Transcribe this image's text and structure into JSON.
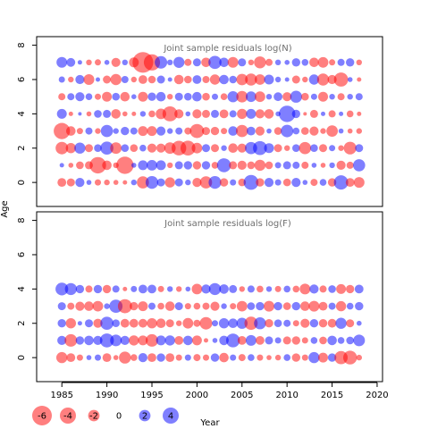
{
  "chart_data": {
    "type": "scatter",
    "ylabel": "Age",
    "xlabel": "Year",
    "xticks": [
      1985,
      1990,
      1995,
      2000,
      2005,
      2010,
      2015,
      2020
    ],
    "xlim": [
      1982.2,
      2020.6
    ],
    "colors": {
      "positive": "#0000ff",
      "negative": "#ff0000"
    },
    "panels": [
      {
        "title": "Joint sample residuals log(N)",
        "ylim": [
          -1.4,
          8.5
        ],
        "yticks": [
          0,
          2,
          4,
          6,
          8
        ],
        "years": [
          1985,
          1986,
          1987,
          1988,
          1989,
          1990,
          1991,
          1992,
          1993,
          1994,
          1995,
          1996,
          1997,
          1998,
          1999,
          2000,
          2001,
          2002,
          2003,
          2004,
          2005,
          2006,
          2007,
          2008,
          2009,
          2010,
          2011,
          2012,
          2013,
          2014,
          2015,
          2016,
          2017,
          2018
        ],
        "ages": [
          0,
          1,
          2,
          3,
          4,
          5,
          6,
          7
        ],
        "residuals": [
          [
            -1.2,
            0.3,
            -2.4,
            -4.1,
            1.5,
            -0.8,
            0.6,
            1.8
          ],
          [
            -1.0,
            -0.4,
            -1.6,
            -1.4,
            -0.3,
            0.8,
            -0.5,
            1.2
          ],
          [
            1.3,
            -0.9,
            1.9,
            -0.6,
            0.2,
            1.3,
            1.3,
            0.3
          ],
          [
            0.4,
            -1.0,
            -1.0,
            0.8,
            -0.4,
            0.7,
            -1.8,
            -0.5
          ],
          [
            -0.6,
            -4.2,
            0.9,
            -0.5,
            0.9,
            -0.6,
            0.3,
            -0.6
          ],
          [
            -0.5,
            -1.4,
            2.6,
            2.3,
            1.0,
            -1.5,
            -1.0,
            0.4
          ],
          [
            -0.4,
            -0.5,
            -2.0,
            0.5,
            -1.4,
            0.9,
            -1.9,
            -1.3
          ],
          [
            -0.3,
            -4.6,
            0.9,
            1.1,
            -0.4,
            -1.4,
            0.8,
            0.5
          ],
          [
            0.5,
            0.4,
            -0.9,
            0.8,
            -0.3,
            0.4,
            -0.5,
            -1.5
          ],
          [
            -2.3,
            1.5,
            0.7,
            -1.5,
            0.5,
            -1.5,
            -1.2,
            -6.6
          ],
          [
            2.5,
            1.7,
            -1.3,
            -1.5,
            -0.7,
            1.1,
            -0.9,
            -4.1
          ],
          [
            1.0,
            1.5,
            -1.3,
            1.3,
            -1.7,
            1.4,
            1.0,
            2.4
          ],
          [
            -1.6,
            -0.5,
            -2.0,
            0.5,
            -3.5,
            -0.5,
            0.3,
            0.5
          ],
          [
            1.0,
            1.0,
            -3.3,
            0.8,
            -1.3,
            1.0,
            -1.4,
            1.9
          ],
          [
            0.5,
            1.1,
            -3.4,
            -0.8,
            0.4,
            0.9,
            -0.9,
            -0.8
          ],
          [
            -1.3,
            -1.1,
            -1.7,
            -3.1,
            -1.3,
            1.4,
            1.2,
            1.0
          ],
          [
            -2.3,
            1.1,
            1.0,
            -1.0,
            -1.0,
            -0.9,
            -0.8,
            -1.4
          ],
          [
            2.5,
            -0.7,
            -1.0,
            -1.1,
            1.0,
            0.6,
            -1.6,
            2.6
          ],
          [
            -1.1,
            3.0,
            0.5,
            -0.6,
            -1.2,
            -0.7,
            1.4,
            1.4
          ],
          [
            0.6,
            -1.0,
            -1.4,
            1.4,
            0.8,
            1.9,
            0.9,
            -1.8
          ],
          [
            -0.9,
            -1.3,
            -1.3,
            -2.3,
            -1.6,
            -2.0,
            -2.0,
            1.0
          ],
          [
            3.4,
            -0.9,
            2.3,
            1.2,
            1.5,
            1.7,
            -2.2,
            -0.5
          ],
          [
            -1.1,
            -1.9,
            3.0,
            -1.3,
            -1.3,
            -1.7,
            -1.7,
            -2.2
          ],
          [
            1.3,
            -0.9,
            1.5,
            0.4,
            -1.4,
            0.5,
            1.5,
            -0.8
          ],
          [
            0.6,
            0.6,
            -1.0,
            -0.9,
            0.4,
            1.2,
            0.5,
            0.5
          ],
          [
            -0.9,
            1.0,
            -0.5,
            2.4,
            4.2,
            -1.3,
            0.3,
            0.4
          ],
          [
            1.3,
            0.8,
            0.9,
            0.7,
            1.1,
            2.2,
            -1.0,
            1.1
          ],
          [
            0.4,
            -0.8,
            -2.3,
            -0.9,
            -0.2,
            -0.9,
            -0.5,
            0.7
          ],
          [
            -0.8,
            0.4,
            0.9,
            -1.3,
            -1.0,
            0.6,
            1.6,
            -1.4
          ],
          [
            0.7,
            -0.4,
            -1.0,
            -0.5,
            0.3,
            -1.5,
            -2.2,
            -1.7
          ],
          [
            -1.1,
            0.5,
            0.6,
            -2.0,
            -0.8,
            0.5,
            -1.3,
            -0.6
          ],
          [
            3.2,
            -1.3,
            -0.5,
            0.4,
            0.3,
            -0.8,
            -3.1,
            0.8
          ],
          [
            -1.2,
            -0.8,
            -2.5,
            -0.4,
            -0.7,
            0.5,
            0.4,
            1.1
          ],
          [
            -1.8,
            2.3,
            1.0,
            -0.5,
            -0.3,
            0.8,
            -0.3,
            -0.5
          ]
        ]
      },
      {
        "title": "Joint sample residuals log(F)",
        "ylim": [
          -1.4,
          8.5
        ],
        "yticks": [
          0,
          2,
          4,
          6,
          8
        ],
        "years": [
          1985,
          1986,
          1987,
          1988,
          1989,
          1990,
          1991,
          1992,
          1993,
          1994,
          1995,
          1996,
          1997,
          1998,
          1999,
          2000,
          2001,
          2002,
          2003,
          2004,
          2005,
          2006,
          2007,
          2008,
          2009,
          2010,
          2011,
          2012,
          2013,
          2014,
          2015,
          2016,
          2017,
          2018
        ],
        "ages": [
          0,
          1,
          2,
          3,
          4
        ],
        "residuals": [
          [
            -1.9,
            1.3,
            1.1,
            1.0,
            2.5
          ],
          [
            -1.2,
            -2.4,
            -1.6,
            -0.8,
            2.2
          ],
          [
            -0.6,
            1.1,
            0.3,
            -1.3,
            1.1
          ],
          [
            0.4,
            1.4,
            1.0,
            -1.4,
            -0.8
          ],
          [
            0.6,
            1.3,
            -1.3,
            -1.7,
            1.1
          ],
          [
            -1.2,
            3.0,
            2.6,
            0.5,
            -1.1
          ],
          [
            -0.4,
            2.1,
            0.9,
            2.7,
            0.8
          ],
          [
            -2.2,
            1.3,
            -1.2,
            -3.1,
            -0.3
          ],
          [
            -0.7,
            -1.6,
            -1.2,
            -1.1,
            0.6
          ],
          [
            1.3,
            -1.5,
            -1.2,
            -1.5,
            1.2
          ],
          [
            -1.2,
            -2.4,
            -1.6,
            0.8,
            1.2
          ],
          [
            1.1,
            1.5,
            -1.4,
            -0.7,
            -0.6
          ],
          [
            -1.2,
            1.6,
            -1.0,
            -1.4,
            0.5
          ],
          [
            -0.6,
            -1.2,
            -0.5,
            1.0,
            -0.5
          ],
          [
            0.6,
            1.4,
            -1.7,
            -0.6,
            0.4
          ],
          [
            -0.8,
            -1.5,
            -0.8,
            -0.7,
            -1.7
          ],
          [
            -0.6,
            -0.3,
            -2.4,
            -0.8,
            1.3
          ],
          [
            1.1,
            0.4,
            0.6,
            -1.3,
            2.2
          ],
          [
            -1.4,
            1.4,
            1.6,
            0.5,
            1.4
          ],
          [
            0.6,
            2.9,
            1.4,
            -0.6,
            1.0
          ],
          [
            -0.8,
            -1.2,
            1.9,
            -1.7,
            -0.5
          ],
          [
            0.7,
            1.8,
            -2.7,
            0.9,
            0.8
          ],
          [
            -0.6,
            -1.2,
            2.2,
            1.1,
            -0.7
          ],
          [
            -0.4,
            1.0,
            -1.1,
            -1.8,
            0.5
          ],
          [
            -0.5,
            0.6,
            0.9,
            1.1,
            -0.6
          ],
          [
            0.7,
            -1.0,
            0.8,
            -0.9,
            0.7
          ],
          [
            -1.1,
            -1.1,
            -0.6,
            1.1,
            -0.7
          ],
          [
            -0.6,
            -0.6,
            -1.3,
            -1.4,
            -1.8
          ],
          [
            1.9,
            0.7,
            1.1,
            -1.8,
            1.3
          ],
          [
            -1.5,
            -0.9,
            -1.1,
            -1.2,
            -0.8
          ],
          [
            1.1,
            1.4,
            -1.2,
            0.8,
            0.9
          ],
          [
            -2.7,
            0.7,
            1.9,
            -1.6,
            -1.5
          ],
          [
            -2.9,
            0.9,
            -1.0,
            0.7,
            -1.1
          ],
          [
            -0.5,
            2.1,
            0.4,
            1.1,
            1.2
          ]
        ]
      }
    ],
    "legend": {
      "values": [
        -6,
        -4,
        -2,
        0,
        2,
        4
      ],
      "labels": [
        "-6",
        "-4",
        "-2",
        "0",
        "2",
        "4"
      ]
    }
  }
}
